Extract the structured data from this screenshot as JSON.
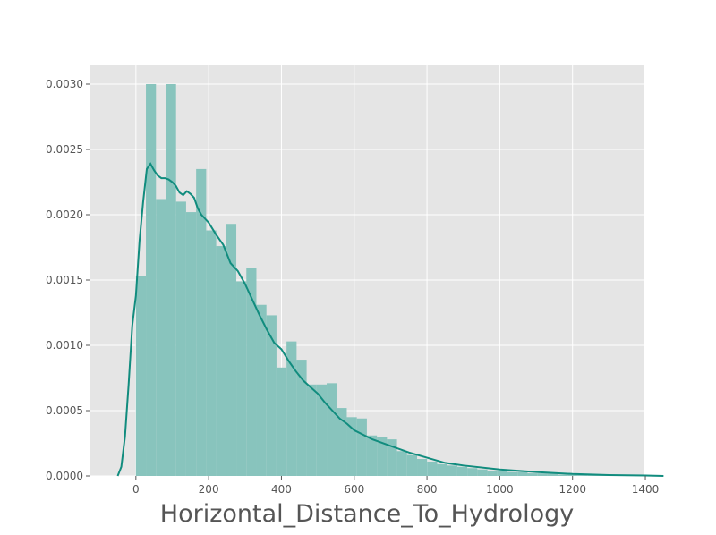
{
  "chart_data": {
    "type": "bar",
    "title": "",
    "xlabel": "Horizontal_Distance_To_Hydrology",
    "ylabel": "",
    "xlim": [
      -125,
      1395
    ],
    "ylim": [
      0,
      0.003
    ],
    "grid": true,
    "xticks": [
      "0",
      "200",
      "400",
      "600",
      "800",
      "1000",
      "1200",
      "1400"
    ],
    "xtick_values": [
      0,
      200,
      400,
      600,
      800,
      1000,
      1200,
      1400
    ],
    "yticks": [
      "0.0000",
      "0.0005",
      "0.0010",
      "0.0015",
      "0.0020",
      "0.0025",
      "0.0030"
    ],
    "ytick_values": [
      0,
      0.0005,
      0.001,
      0.0015,
      0.002,
      0.0025,
      0.003
    ],
    "histogram": {
      "bin_width": 27.6,
      "bin_start": 0,
      "values": [
        0.00153,
        0.003,
        0.00212,
        0.003,
        0.0021,
        0.00202,
        0.00235,
        0.00188,
        0.00176,
        0.00193,
        0.00149,
        0.00159,
        0.00131,
        0.00123,
        0.00083,
        0.00103,
        0.00089,
        0.0007,
        0.0007,
        0.00071,
        0.00052,
        0.00045,
        0.00044,
        0.00031,
        0.0003,
        0.00028,
        0.00019,
        0.00016,
        0.00013,
        0.00011,
        9e-05,
        8e-05,
        7e-05,
        6e-05,
        5e-05,
        4e-05,
        4e-05,
        3e-05,
        3e-05,
        2e-05,
        2e-05,
        2e-05,
        1e-05,
        1e-05,
        1e-05,
        1e-05,
        1e-05,
        1e-05,
        1e-05,
        1e-05,
        5e-06,
        5e-06
      ],
      "color": "#88c4bd"
    },
    "kde": {
      "color": "#118c7e",
      "x": [
        -50,
        -40,
        -30,
        -20,
        -10,
        0,
        10,
        20,
        30,
        40,
        50,
        60,
        70,
        80,
        90,
        100,
        110,
        120,
        130,
        140,
        150,
        160,
        170,
        180,
        190,
        200,
        220,
        240,
        260,
        280,
        300,
        320,
        340,
        360,
        380,
        400,
        420,
        440,
        460,
        480,
        500,
        520,
        540,
        560,
        580,
        600,
        650,
        700,
        750,
        800,
        850,
        900,
        1000,
        1100,
        1200,
        1300,
        1400,
        1450
      ],
      "y": [
        0.0,
        7e-05,
        0.0003,
        0.0007,
        0.00115,
        0.00138,
        0.0018,
        0.0021,
        0.00235,
        0.00239,
        0.00234,
        0.0023,
        0.00228,
        0.00228,
        0.00227,
        0.00225,
        0.00222,
        0.00217,
        0.00215,
        0.00218,
        0.00216,
        0.00213,
        0.00205,
        0.002,
        0.00197,
        0.00194,
        0.00185,
        0.00177,
        0.00163,
        0.00157,
        0.00147,
        0.00135,
        0.00123,
        0.00112,
        0.00102,
        0.00097,
        0.00088,
        0.0008,
        0.00073,
        0.00068,
        0.00063,
        0.00056,
        0.0005,
        0.00044,
        0.0004,
        0.00035,
        0.00028,
        0.00023,
        0.00018,
        0.00014,
        0.0001,
        8e-05,
        5e-05,
        3e-05,
        1.5e-05,
        7e-06,
        3e-06,
        0.0
      ]
    }
  }
}
